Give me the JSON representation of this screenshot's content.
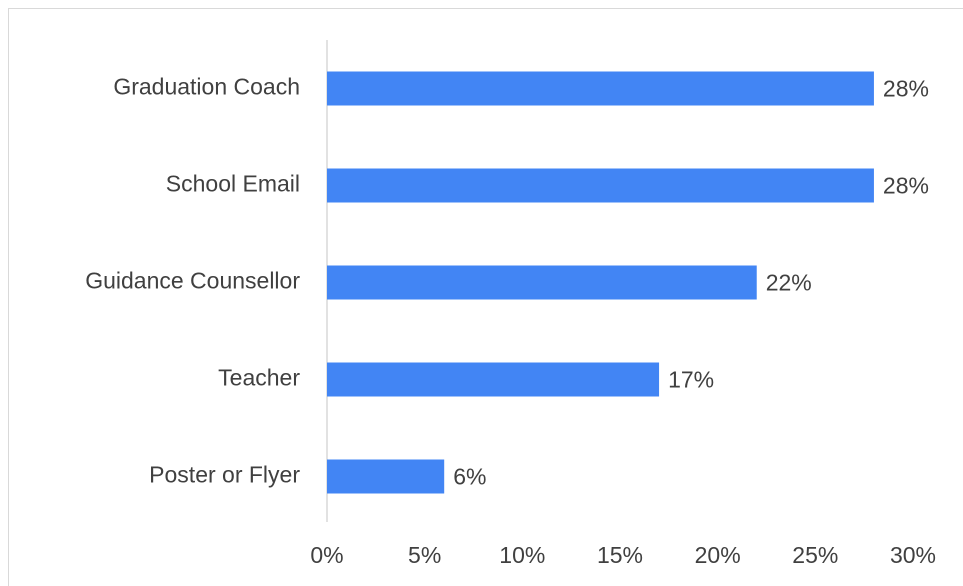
{
  "chart_data": {
    "type": "bar",
    "orientation": "horizontal",
    "categories": [
      "Graduation Coach",
      "School Email",
      "Guidance Counsellor",
      "Teacher",
      "Poster or Flyer"
    ],
    "values": [
      28,
      28,
      22,
      17,
      6
    ],
    "value_labels": [
      "28%",
      "28%",
      "22%",
      "17%",
      "6%"
    ],
    "color": "#4285f4",
    "xlim": [
      0,
      30
    ],
    "xticks": [
      {
        "value": 0,
        "label": "0%"
      },
      {
        "value": 5,
        "label": "5%"
      },
      {
        "value": 10,
        "label": "10%"
      },
      {
        "value": 15,
        "label": "15%"
      },
      {
        "value": 20,
        "label": "20%"
      },
      {
        "value": 25,
        "label": "25%"
      },
      {
        "value": 30,
        "label": "30%"
      }
    ],
    "grid": false
  }
}
